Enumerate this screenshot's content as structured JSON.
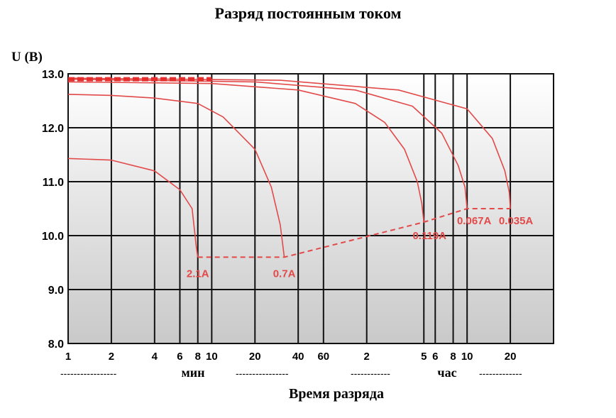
{
  "chart_data": {
    "type": "line",
    "title": "Разряд постоянным током",
    "ylabel": "U (B)",
    "xlabel": "Время разряда",
    "ylim": [
      8.0,
      13.0
    ],
    "yticks": [
      "8.0",
      "9.0",
      "10.0",
      "11.0",
      "12.0",
      "13.0"
    ],
    "yscale_values": [
      8.0,
      9.0,
      10.0,
      11.0,
      12.0,
      13.0
    ],
    "xscale": "log",
    "x_unit": "min",
    "xlim_min": [
      1,
      2400
    ],
    "xticks": [
      {
        "label": "1",
        "min": 1
      },
      {
        "label": "2",
        "min": 2
      },
      {
        "label": "4",
        "min": 4
      },
      {
        "label": "6",
        "min": 6
      },
      {
        "label": "8",
        "min": 8
      },
      {
        "label": "10",
        "min": 10
      },
      {
        "label": "20",
        "min": 20
      },
      {
        "label": "40",
        "min": 40
      },
      {
        "label": "60",
        "min": 60
      },
      {
        "label": "2",
        "min": 120
      },
      {
        "label": "5",
        "min": 300
      },
      {
        "label": "6",
        "min": 360
      },
      {
        "label": "8",
        "min": 480
      },
      {
        "label": "10",
        "min": 600
      },
      {
        "label": "20",
        "min": 1200
      }
    ],
    "unit_labels": {
      "min": "мин",
      "hour": "час"
    },
    "unit_dashes": {
      "seg1": "-----------------",
      "seg2": "----------------",
      "seg3": "------------",
      "seg4": "-------------"
    },
    "grid": true,
    "series": [
      {
        "name": "2.1A",
        "points": [
          [
            1,
            11.43
          ],
          [
            2,
            11.4
          ],
          [
            4,
            11.2
          ],
          [
            6,
            10.85
          ],
          [
            7.3,
            10.5
          ],
          [
            7.8,
            9.8
          ],
          [
            8,
            9.6
          ]
        ]
      },
      {
        "name": "0.7A",
        "points": [
          [
            1,
            12.62
          ],
          [
            2,
            12.6
          ],
          [
            4,
            12.55
          ],
          [
            8,
            12.45
          ],
          [
            12,
            12.2
          ],
          [
            20,
            11.6
          ],
          [
            26,
            10.9
          ],
          [
            30,
            10.2
          ],
          [
            32,
            9.6
          ]
        ]
      },
      {
        "name": "0.119A",
        "points": [
          [
            1,
            12.85
          ],
          [
            10,
            12.82
          ],
          [
            40,
            12.7
          ],
          [
            100,
            12.45
          ],
          [
            160,
            12.1
          ],
          [
            220,
            11.6
          ],
          [
            270,
            11.0
          ],
          [
            290,
            10.6
          ],
          [
            300,
            10.25
          ]
        ]
      },
      {
        "name": "0.067A",
        "points": [
          [
            1,
            12.9
          ],
          [
            20,
            12.85
          ],
          [
            100,
            12.7
          ],
          [
            250,
            12.4
          ],
          [
            400,
            11.9
          ],
          [
            520,
            11.3
          ],
          [
            580,
            10.9
          ],
          [
            600,
            10.5
          ]
        ]
      },
      {
        "name": "0.035A",
        "points": [
          [
            1,
            12.92
          ],
          [
            30,
            12.88
          ],
          [
            200,
            12.7
          ],
          [
            600,
            12.35
          ],
          [
            900,
            11.8
          ],
          [
            1100,
            11.2
          ],
          [
            1180,
            10.8
          ],
          [
            1200,
            10.5
          ]
        ]
      }
    ],
    "endpoint_line": [
      [
        8,
        9.6
      ],
      [
        32,
        9.6
      ],
      [
        300,
        10.25
      ],
      [
        600,
        10.5
      ],
      [
        1200,
        10.5
      ]
    ],
    "top_marker": {
      "y": 12.9,
      "x_from": 1,
      "x_to": 10
    },
    "colors": {
      "curve": "#e24a4a",
      "marker": "#e53030",
      "grid": "#111111"
    }
  }
}
